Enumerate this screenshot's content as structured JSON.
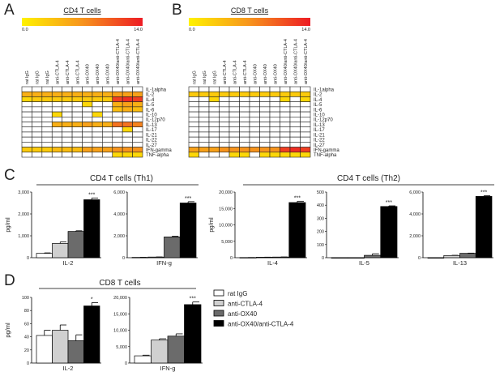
{
  "panel_labels": [
    "A",
    "B",
    "C",
    "D"
  ],
  "group_titles": {
    "th1": "CD4 T cells (Th1)",
    "th2": "CD4 T cells (Th2)",
    "cd8": "CD8 T cells"
  },
  "legend": {
    "entries": [
      {
        "label": "rat IgG",
        "color": "#ffffff"
      },
      {
        "label": "anti-CTLA-4",
        "color": "#d0d0d0"
      },
      {
        "label": "anti-OX40",
        "color": "#6b6b6b"
      },
      {
        "label": "anti-OX40/anti-CTLA-4",
        "color": "#000000"
      }
    ]
  },
  "chart_data": [
    {
      "type": "heatmap",
      "panel": "A",
      "title": "CD4 T cells",
      "colorbar": {
        "min": 0.0,
        "max": 14.0,
        "min_label": "0.0",
        "max_label": "14.0",
        "colors": [
          "#fff200",
          "#f7941d",
          "#ed1c24"
        ]
      },
      "columns": [
        "rat IgG",
        "rat IgG",
        "rat IgG",
        "anti-CTLA-4",
        "anti-CTLA-4",
        "anti-CTLA-4",
        "anti-OX40",
        "anti-OX40",
        "anti-OX40",
        "anti-OX40/anti-CTLA-4",
        "anti-OX40/anti-CTLA-4",
        "anti-OX40/anti-CTLA-4"
      ],
      "rows": [
        "IL-1alpha",
        "IL-2",
        "IL-4",
        "IL-5",
        "IL-6",
        "IL-10",
        "IL-12p70",
        "IL-13",
        "IL-17",
        "IL-21",
        "IL-22",
        "IL-27",
        "IFN-gamma",
        "TNF-alpha"
      ],
      "values": [
        [
          0,
          0,
          0,
          0,
          0,
          0,
          0,
          0,
          0,
          0,
          0,
          0
        ],
        [
          5,
          5,
          5,
          5,
          5,
          5,
          5,
          5,
          5,
          6,
          6,
          6
        ],
        [
          2,
          3,
          3,
          3,
          3,
          3,
          3,
          3,
          3,
          12,
          13,
          12
        ],
        [
          0,
          0,
          0,
          0,
          0,
          0,
          2,
          0,
          0,
          5,
          6,
          5
        ],
        [
          0,
          0,
          0,
          0,
          0,
          0,
          0,
          0,
          0,
          4,
          5,
          4
        ],
        [
          0,
          0,
          0,
          2,
          0,
          0,
          0,
          2,
          0,
          0,
          0,
          0
        ],
        [
          0,
          0,
          0,
          0,
          0,
          0,
          0,
          0,
          0,
          0,
          0,
          0
        ],
        [
          0,
          0,
          0,
          5,
          5,
          5,
          6,
          5,
          5,
          9,
          9,
          8
        ],
        [
          0,
          0,
          0,
          0,
          0,
          0,
          0,
          0,
          0,
          0,
          2,
          0
        ],
        [
          0,
          0,
          0,
          0,
          0,
          0,
          0,
          0,
          0,
          0,
          0,
          0
        ],
        [
          0,
          0,
          0,
          0,
          0,
          0,
          0,
          0,
          0,
          0,
          0,
          0
        ],
        [
          0,
          0,
          0,
          0,
          0,
          0,
          0,
          0,
          0,
          0,
          0,
          0
        ],
        [
          3,
          3,
          3,
          4,
          4,
          4,
          6,
          6,
          6,
          7,
          7,
          7
        ],
        [
          0,
          0,
          0,
          0,
          0,
          0,
          0,
          0,
          0,
          2,
          2,
          2
        ]
      ]
    },
    {
      "type": "heatmap",
      "panel": "B",
      "title": "CD8 T cells",
      "colorbar": {
        "min": 0.0,
        "max": 14.0,
        "min_label": "0.0",
        "max_label": "14.0",
        "colors": [
          "#fff200",
          "#f7941d",
          "#ed1c24"
        ]
      },
      "columns": [
        "rat IgG",
        "rat IgG",
        "rat IgG",
        "anti-CTLA-4",
        "anti-CTLA-4",
        "anti-CTLA-4",
        "anti-OX40",
        "anti-OX40",
        "anti-OX40",
        "anti-OX40/anti-CTLA-4",
        "anti-OX40/anti-CTLA-4",
        "anti-OX40/anti-CTLA-4"
      ],
      "rows": [
        "IL-1alpha",
        "IL-2",
        "IL-4",
        "IL-5",
        "IL-6",
        "IL-10",
        "IL-12p70",
        "IL-13",
        "IL-17",
        "IL-21",
        "IL-22",
        "IL-27",
        "IFN-gamma",
        "TNF-alpha"
      ],
      "values": [
        [
          0,
          0,
          0,
          0,
          0,
          0,
          0,
          0,
          0,
          0,
          0,
          0
        ],
        [
          3,
          3,
          3,
          3,
          3,
          3,
          3,
          3,
          3,
          3,
          3,
          3
        ],
        [
          0,
          0,
          2,
          0,
          0,
          0,
          0,
          0,
          0,
          2,
          0,
          2
        ],
        [
          0,
          0,
          0,
          0,
          0,
          0,
          0,
          0,
          0,
          0,
          0,
          0
        ],
        [
          0,
          0,
          0,
          0,
          0,
          0,
          0,
          0,
          0,
          0,
          0,
          0
        ],
        [
          0,
          0,
          0,
          0,
          0,
          0,
          0,
          0,
          0,
          0,
          0,
          0
        ],
        [
          0,
          0,
          0,
          0,
          0,
          0,
          0,
          0,
          0,
          0,
          0,
          0
        ],
        [
          0,
          0,
          0,
          0,
          0,
          0,
          0,
          0,
          0,
          0,
          0,
          0
        ],
        [
          0,
          0,
          0,
          0,
          0,
          0,
          0,
          0,
          0,
          0,
          0,
          0
        ],
        [
          0,
          0,
          0,
          0,
          0,
          0,
          0,
          0,
          0,
          0,
          0,
          0
        ],
        [
          0,
          0,
          0,
          0,
          0,
          0,
          0,
          0,
          0,
          0,
          0,
          0
        ],
        [
          0,
          0,
          0,
          0,
          0,
          0,
          0,
          0,
          0,
          0,
          0,
          0
        ],
        [
          6,
          6,
          6,
          7,
          7,
          7,
          7,
          7,
          7,
          12,
          13,
          12
        ],
        [
          2,
          0,
          0,
          0,
          2,
          2,
          0,
          2,
          2,
          2,
          2,
          2
        ]
      ]
    },
    {
      "type": "bar",
      "panel": "C",
      "group": "th1",
      "xlabel": "IL-2",
      "ylabel": "pg/ml",
      "ylim": [
        0,
        3000
      ],
      "yticks": [
        0,
        1000,
        2000,
        3000
      ],
      "ytick_labels": [
        "0",
        "1,000",
        "2,000",
        "3,000"
      ],
      "categories": [
        "rat IgG",
        "anti-CTLA-4",
        "anti-OX40",
        "anti-OX40/anti-CTLA-4"
      ],
      "values": [
        200,
        650,
        1200,
        2650
      ],
      "errors": [
        20,
        70,
        30,
        80
      ],
      "significance": "***"
    },
    {
      "type": "bar",
      "panel": "C",
      "group": "th1",
      "xlabel": "IFN-g",
      "ylabel": "",
      "ylim": [
        0,
        6000
      ],
      "yticks": [
        0,
        2000,
        4000,
        6000
      ],
      "ytick_labels": [
        "0",
        "2,000",
        "4,000",
        "6,000"
      ],
      "categories": [
        "rat IgG",
        "anti-CTLA-4",
        "anti-OX40",
        "anti-OX40/anti-CTLA-4"
      ],
      "values": [
        30,
        60,
        1900,
        5000
      ],
      "errors": [
        5,
        10,
        60,
        120
      ],
      "significance": "***"
    },
    {
      "type": "bar",
      "panel": "C",
      "group": "th2",
      "xlabel": "IL-4",
      "ylabel": "pg/ml",
      "ylim": [
        0,
        20000
      ],
      "yticks": [
        0,
        5000,
        10000,
        15000,
        20000
      ],
      "ytick_labels": [
        "0",
        "5,000",
        "10,000",
        "15,000",
        "20,000"
      ],
      "categories": [
        "rat IgG",
        "anti-CTLA-4",
        "anti-OX40",
        "anti-OX40/anti-CTLA-4"
      ],
      "values": [
        50,
        150,
        200,
        16800
      ],
      "errors": [
        10,
        20,
        30,
        400
      ],
      "significance": "***"
    },
    {
      "type": "bar",
      "panel": "C",
      "group": "th2",
      "xlabel": "IL-5",
      "ylabel": "",
      "ylim": [
        0,
        500
      ],
      "yticks": [
        0,
        100,
        200,
        300,
        400,
        500
      ],
      "ytick_labels": [
        "0",
        "100",
        "200",
        "300",
        "400",
        "500"
      ],
      "categories": [
        "rat IgG",
        "anti-CTLA-4",
        "anti-OX40",
        "anti-OX40/anti-CTLA-4"
      ],
      "values": [
        0,
        0,
        18,
        390
      ],
      "errors": [
        0,
        0,
        12,
        5
      ],
      "significance": "***"
    },
    {
      "type": "bar",
      "panel": "C",
      "group": "th2",
      "xlabel": "IL-13",
      "ylabel": "",
      "ylim": [
        0,
        6000
      ],
      "yticks": [
        0,
        2000,
        4000,
        6000
      ],
      "ytick_labels": [
        "0",
        "2,000",
        "4,000",
        "6,000"
      ],
      "categories": [
        "rat IgG",
        "anti-CTLA-4",
        "anti-OX40",
        "anti-OX40/anti-CTLA-4"
      ],
      "values": [
        0,
        200,
        400,
        5600
      ],
      "errors": [
        0,
        20,
        20,
        60
      ],
      "significance": "***"
    },
    {
      "type": "bar",
      "panel": "D",
      "group": "cd8",
      "xlabel": "IL-2",
      "ylabel": "pg/ml",
      "ylim": [
        0,
        100
      ],
      "yticks": [
        0,
        20,
        40,
        60,
        80,
        100
      ],
      "ytick_labels": [
        "0",
        "20",
        "40",
        "60",
        "80",
        "100"
      ],
      "categories": [
        "rat IgG",
        "anti-CTLA-4",
        "anti-OX40",
        "anti-OX40/anti-CTLA-4"
      ],
      "values": [
        42,
        50,
        34,
        87
      ],
      "errors": [
        8,
        8,
        9,
        5
      ],
      "significance": "*"
    },
    {
      "type": "bar",
      "panel": "D",
      "group": "cd8",
      "xlabel": "IFN-g",
      "ylabel": "",
      "ylim": [
        0,
        20000
      ],
      "yticks": [
        0,
        5000,
        10000,
        15000,
        20000
      ],
      "ytick_labels": [
        "0",
        "5,000",
        "10,000",
        "15,000",
        "20,000"
      ],
      "categories": [
        "rat IgG",
        "anti-CTLA-4",
        "anti-OX40",
        "anti-OX40/anti-CTLA-4"
      ],
      "values": [
        2200,
        7000,
        8200,
        17800
      ],
      "errors": [
        200,
        400,
        700,
        800
      ],
      "significance": "***"
    }
  ]
}
